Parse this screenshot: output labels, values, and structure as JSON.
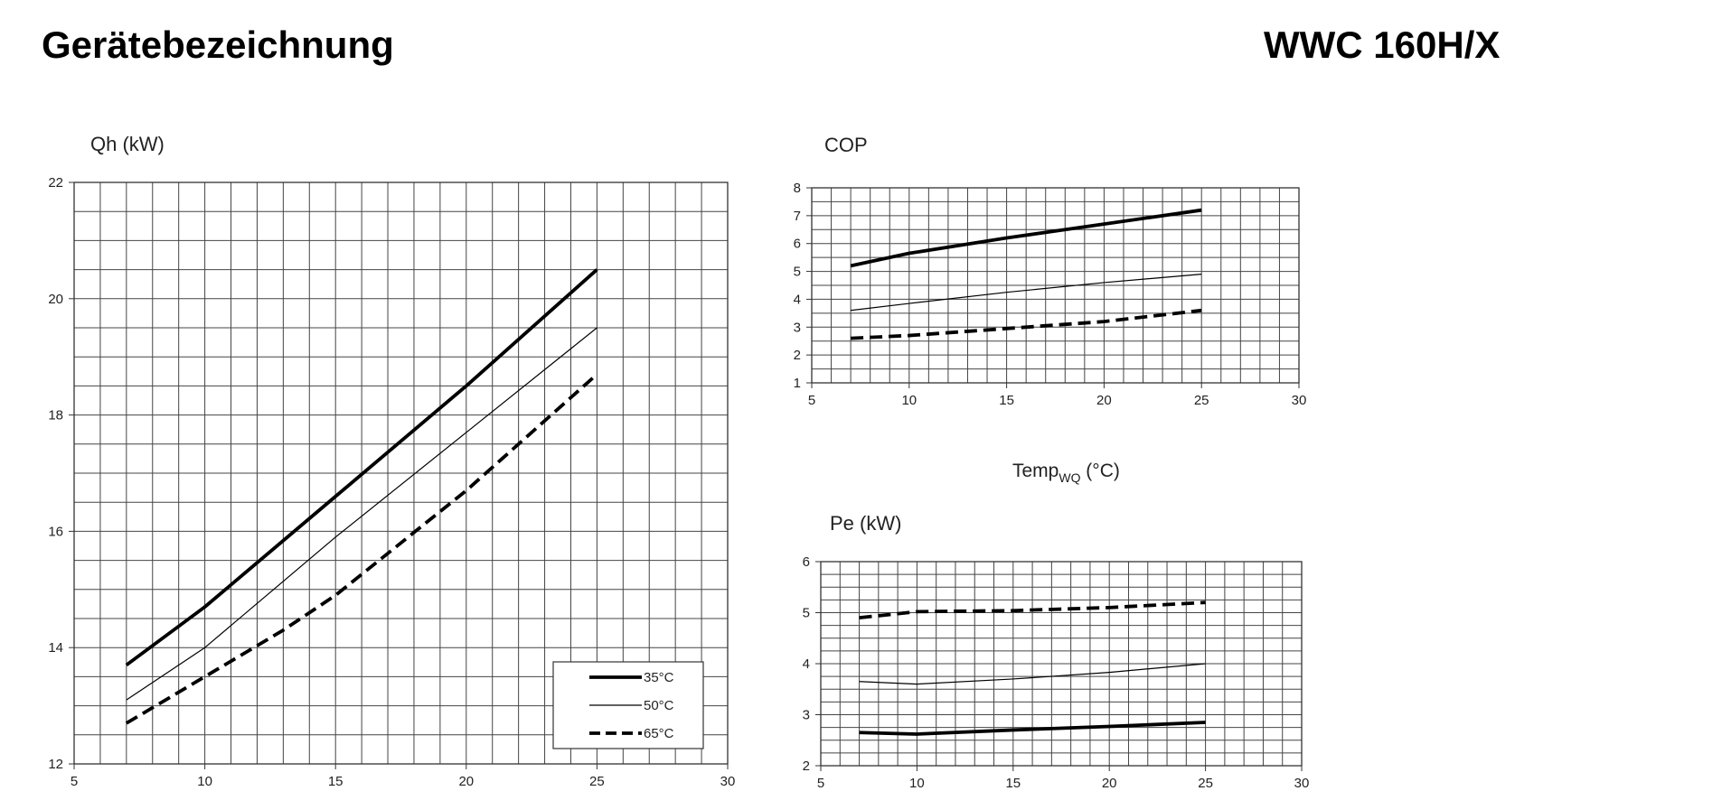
{
  "header": {
    "device_label": "Gerätebezeichnung",
    "device_name": "WWC 160H/X"
  },
  "shared": {
    "xlabel_main": "Temp",
    "xlabel_sub": "WQ",
    "xlabel_unit": " (°C)"
  },
  "legend": [
    "35°C",
    "50°C",
    "65°C"
  ],
  "chart_data": [
    {
      "type": "line",
      "title": "",
      "ylabel": "Qh (kW)",
      "xlabel": "",
      "xlim": [
        5,
        30
      ],
      "ylim": [
        12,
        22
      ],
      "x_ticks": [
        5,
        10,
        15,
        20,
        25,
        30
      ],
      "y_ticks": [
        12,
        14,
        16,
        18,
        20,
        22
      ],
      "x_minor_step": 1,
      "y_minor_step": 0.5,
      "grid": true,
      "legend_position": "bottom-right",
      "series": [
        {
          "name": "35°C",
          "x": [
            7,
            10,
            15,
            20,
            25
          ],
          "y": [
            13.7,
            14.7,
            16.6,
            18.5,
            20.5
          ]
        },
        {
          "name": "50°C",
          "x": [
            7,
            10,
            15,
            20,
            25
          ],
          "y": [
            13.1,
            14.0,
            15.9,
            17.7,
            19.5
          ]
        },
        {
          "name": "65°C",
          "x": [
            7,
            10,
            13,
            15,
            20,
            25
          ],
          "y": [
            12.7,
            13.5,
            14.3,
            14.9,
            16.7,
            18.7
          ]
        }
      ]
    },
    {
      "type": "line",
      "title": "",
      "ylabel": "COP",
      "xlabel": "Temp WQ (°C)",
      "xlim": [
        5,
        30
      ],
      "ylim": [
        1,
        8
      ],
      "x_ticks": [
        5,
        10,
        15,
        20,
        25,
        30
      ],
      "y_ticks": [
        1,
        2,
        3,
        4,
        5,
        6,
        7,
        8
      ],
      "x_minor_step": 1,
      "y_minor_step": 0.5,
      "grid": true,
      "series": [
        {
          "name": "35°C",
          "x": [
            7,
            10,
            15,
            20,
            25
          ],
          "y": [
            5.2,
            5.65,
            6.2,
            6.7,
            7.2
          ]
        },
        {
          "name": "50°C",
          "x": [
            7,
            10,
            15,
            20,
            25
          ],
          "y": [
            3.6,
            3.85,
            4.25,
            4.6,
            4.9
          ]
        },
        {
          "name": "65°C",
          "x": [
            7,
            10,
            15,
            20,
            25
          ],
          "y": [
            2.6,
            2.7,
            2.95,
            3.2,
            3.6
          ]
        }
      ]
    },
    {
      "type": "line",
      "title": "",
      "ylabel": "Pe (kW)",
      "xlabel": "",
      "xlim": [
        5,
        30
      ],
      "ylim": [
        2,
        6
      ],
      "x_ticks": [
        5,
        10,
        15,
        20,
        25,
        30
      ],
      "y_ticks": [
        2,
        3,
        4,
        5,
        6
      ],
      "x_minor_step": 1,
      "y_minor_step": 0.25,
      "grid": true,
      "series": [
        {
          "name": "35°C",
          "x": [
            7,
            10,
            15,
            20,
            25
          ],
          "y": [
            2.65,
            2.62,
            2.7,
            2.77,
            2.85
          ]
        },
        {
          "name": "50°C",
          "x": [
            7,
            10,
            15,
            20,
            25
          ],
          "y": [
            3.65,
            3.6,
            3.7,
            3.83,
            4.0
          ]
        },
        {
          "name": "65°C",
          "x": [
            7,
            10,
            15,
            20,
            25
          ],
          "y": [
            4.9,
            5.02,
            5.04,
            5.1,
            5.2
          ]
        }
      ]
    }
  ]
}
